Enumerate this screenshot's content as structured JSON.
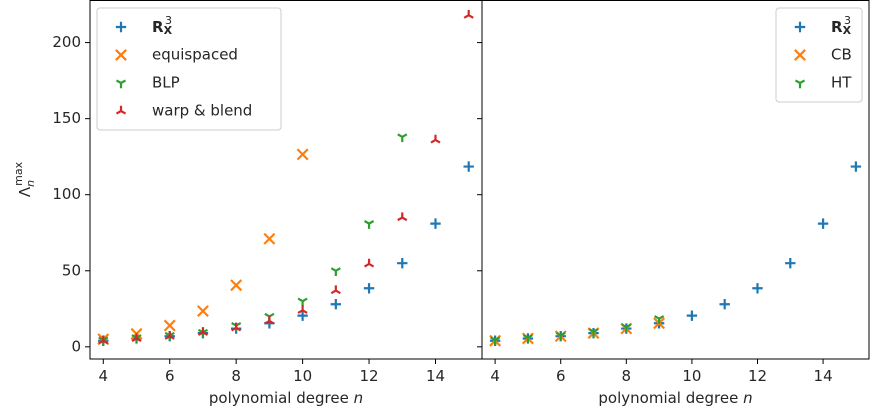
{
  "chart_data": [
    {
      "type": "scatter",
      "panel": "left",
      "xlabel": "polynomial degree n",
      "ylabel": "Λ_n^max",
      "xlim": [
        3.6,
        15.4
      ],
      "ylim": [
        -8,
        228
      ],
      "xticks": [
        4,
        6,
        8,
        10,
        12,
        14
      ],
      "yticks": [
        0,
        50,
        100,
        150,
        200
      ],
      "grid": false,
      "legend_placement": "top-left",
      "series": [
        {
          "name": "R_X^3",
          "marker": "plus",
          "color": "#1f77b4",
          "x": [
            4,
            5,
            6,
            7,
            8,
            9,
            10,
            11,
            12,
            13,
            14,
            15
          ],
          "y": [
            4,
            5.5,
            7,
            9,
            12,
            15.5,
            20.5,
            28,
            38.5,
            55,
            81,
            118.5
          ]
        },
        {
          "name": "equispaced",
          "marker": "x",
          "color": "#ff7f0e",
          "x": [
            4,
            5,
            6,
            7,
            8,
            9,
            10
          ],
          "y": [
            5,
            8.5,
            14,
            23.5,
            40.5,
            71,
            126.5
          ]
        },
        {
          "name": "BLP",
          "marker": "tri_down",
          "color": "#2ca02c",
          "x": [
            4,
            5,
            6,
            7,
            8,
            9,
            10,
            11,
            12,
            13
          ],
          "y": [
            4.5,
            6,
            7.5,
            9.5,
            14,
            20,
            30,
            50,
            81,
            138
          ]
        },
        {
          "name": "warp & blend",
          "marker": "tri_up",
          "color": "#d62728",
          "x": [
            4,
            5,
            6,
            7,
            8,
            9,
            10,
            11,
            12,
            13,
            14,
            15
          ],
          "y": [
            4,
            5.5,
            7,
            9.5,
            12.5,
            17,
            24,
            37,
            54.5,
            85,
            136,
            218
          ]
        }
      ]
    },
    {
      "type": "scatter",
      "panel": "right",
      "xlabel": "polynomial degree n",
      "ylabel": "",
      "xlim": [
        3.6,
        15.4
      ],
      "ylim": [
        -8,
        228
      ],
      "xticks": [
        4,
        6,
        8,
        10,
        12,
        14
      ],
      "grid": false,
      "legend_placement": "top-right",
      "series": [
        {
          "name": "R_X^3",
          "marker": "plus",
          "color": "#1f77b4",
          "x": [
            4,
            5,
            6,
            7,
            8,
            9,
            10,
            11,
            12,
            13,
            14,
            15
          ],
          "y": [
            4,
            5.5,
            7,
            9,
            12,
            15.5,
            20.5,
            28,
            38.5,
            55,
            81,
            118.5
          ]
        },
        {
          "name": "CB",
          "marker": "x",
          "color": "#ff7f0e",
          "x": [
            4,
            5,
            6,
            7,
            8,
            9
          ],
          "y": [
            4,
            5.5,
            7,
            9,
            12,
            15.5
          ]
        },
        {
          "name": "HT",
          "marker": "tri_down",
          "color": "#2ca02c",
          "x": [
            4,
            5,
            6,
            7,
            8,
            9
          ],
          "y": [
            4.5,
            6,
            7.5,
            10,
            13,
            18.5
          ]
        }
      ]
    }
  ]
}
